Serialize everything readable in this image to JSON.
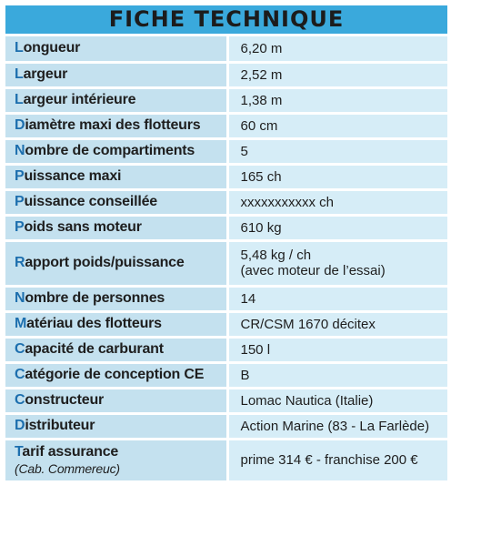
{
  "title": "FICHE TECHNIQUE",
  "rows": [
    {
      "first": "L",
      "rest": "ongueur",
      "value": "6,20 m"
    },
    {
      "first": "L",
      "rest": "argeur",
      "value": "2,52 m"
    },
    {
      "first": "L",
      "rest": "argeur intérieure",
      "value": "1,38 m"
    },
    {
      "first": "D",
      "rest": "iamètre maxi des flotteurs",
      "value": "60 cm"
    },
    {
      "first": "N",
      "rest": "ombre de compartiments",
      "value": "5"
    },
    {
      "first": "P",
      "rest": "uissance maxi",
      "value": "165 ch"
    },
    {
      "first": "P",
      "rest": "uissance conseillée",
      "value": "xxxxxxxxxxx ch"
    },
    {
      "first": "P",
      "rest": "oids sans moteur",
      "value": "610 kg"
    },
    {
      "first": "R",
      "rest": "apport poids/puissance",
      "value": "5,48 kg / ch",
      "value2": "(avec moteur de l’essai)"
    },
    {
      "first": "N",
      "rest": "ombre de personnes",
      "value": "14"
    },
    {
      "first": "M",
      "rest": "atériau des flotteurs",
      "value": "CR/CSM 1670 décitex"
    },
    {
      "first": "C",
      "rest": "apacité de carburant",
      "value": "150 l"
    },
    {
      "first": "C",
      "rest": "atégorie de conception CE",
      "value": "B"
    },
    {
      "first": "C",
      "rest": "onstructeur",
      "value": "Lomac Nautica (Italie)"
    },
    {
      "first": "D",
      "rest": "istributeur",
      "value": "Action Marine (83 - La Farlède)"
    },
    {
      "first": "T",
      "rest": "arif assurance",
      "sub": "(Cab. Commereuc)",
      "value": "prime 314 € - franchise 200 €"
    }
  ]
}
